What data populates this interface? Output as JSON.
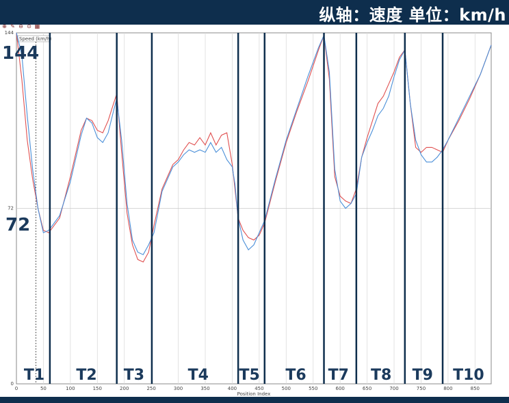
{
  "banner": {
    "text": "纵轴：速度  单位：km/h"
  },
  "toolbar": {
    "icons": [
      "zoom-in-icon",
      "zoom-tool-icon",
      "zoom-out-icon",
      "zoom-fit-icon",
      "grid-icon"
    ]
  },
  "colors": {
    "header_bg": "#0e2e4d",
    "series_red": "#e05050",
    "series_blue": "#4a8fd8",
    "turn_line": "#0e2e4d"
  },
  "chart_data": {
    "type": "line",
    "title": "",
    "xlabel": "Position Index",
    "ylabel": "Speed (km/h)",
    "xlim": [
      0,
      880
    ],
    "ylim": [
      0,
      144
    ],
    "x_ticks": [
      "0",
      "50",
      "100",
      "150",
      "200",
      "250",
      "300",
      "350",
      "400",
      "450",
      "500",
      "550",
      "600",
      "650",
      "700",
      "750",
      "800",
      "850"
    ],
    "y_ticks": [
      "0",
      "72",
      "144"
    ],
    "annotations": {
      "y_top": "144",
      "y_mid": "72"
    },
    "turn_boundaries": [
      62,
      186,
      251,
      411,
      460,
      570,
      630,
      720,
      790
    ],
    "turn_labels": [
      {
        "label": "T1",
        "x": 33
      },
      {
        "label": "T2",
        "x": 130
      },
      {
        "label": "T3",
        "x": 218
      },
      {
        "label": "T4",
        "x": 337
      },
      {
        "label": "T5",
        "x": 432
      },
      {
        "label": "T6",
        "x": 518
      },
      {
        "label": "T7",
        "x": 597
      },
      {
        "label": "T8",
        "x": 676
      },
      {
        "label": "T9",
        "x": 753
      },
      {
        "label": "T10",
        "x": 838
      }
    ],
    "series": [
      {
        "color": "#e05050",
        "x": [
          0,
          10,
          20,
          30,
          40,
          50,
          60,
          70,
          80,
          100,
          120,
          130,
          140,
          150,
          160,
          170,
          180,
          186,
          195,
          205,
          215,
          225,
          235,
          245,
          255,
          270,
          290,
          300,
          310,
          320,
          330,
          340,
          350,
          360,
          370,
          380,
          390,
          400,
          405,
          411,
          420,
          430,
          440,
          450,
          460,
          480,
          500,
          520,
          540,
          560,
          570,
          580,
          590,
          600,
          610,
          620,
          630,
          640,
          650,
          660,
          670,
          680,
          690,
          700,
          710,
          720,
          730,
          740,
          750,
          760,
          770,
          780,
          790,
          800,
          820,
          840,
          860,
          880
        ],
        "y": [
          144,
          125,
          100,
          84,
          72,
          63,
          62,
          65,
          68,
          85,
          104,
          109,
          108,
          104,
          103,
          108,
          115,
          119,
          95,
          70,
          57,
          51,
          50,
          54,
          65,
          80,
          90,
          92,
          96,
          99,
          98,
          101,
          98,
          103,
          98,
          102,
          103,
          90,
          80,
          68,
          63,
          60,
          59,
          61,
          66,
          83,
          99,
          112,
          124,
          137,
          143,
          125,
          85,
          77,
          75,
          74,
          80,
          93,
          101,
          108,
          115,
          118,
          123,
          128,
          134,
          137,
          115,
          97,
          95,
          97,
          97,
          96,
          95,
          100,
          108,
          117,
          127,
          139
        ]
      },
      {
        "color": "#4a8fd8",
        "x": [
          0,
          10,
          20,
          30,
          40,
          50,
          60,
          70,
          80,
          100,
          120,
          130,
          140,
          150,
          160,
          170,
          180,
          186,
          195,
          205,
          215,
          225,
          235,
          245,
          255,
          270,
          290,
          300,
          310,
          320,
          330,
          340,
          350,
          360,
          370,
          380,
          390,
          400,
          405,
          411,
          420,
          430,
          440,
          450,
          460,
          480,
          500,
          520,
          540,
          560,
          570,
          580,
          590,
          600,
          610,
          620,
          630,
          640,
          650,
          660,
          670,
          680,
          690,
          700,
          710,
          720,
          730,
          740,
          750,
          760,
          770,
          780,
          790,
          800,
          820,
          840,
          860,
          880
        ],
        "y": [
          144,
          135,
          110,
          88,
          72,
          62,
          63,
          66,
          69,
          83,
          102,
          109,
          107,
          101,
          99,
          103,
          112,
          117,
          100,
          74,
          59,
          54,
          53,
          57,
          62,
          79,
          89,
          91,
          94,
          96,
          95,
          96,
          95,
          99,
          95,
          97,
          92,
          89,
          82,
          68,
          59,
          55,
          57,
          62,
          67,
          84,
          100,
          113,
          126,
          138,
          143,
          128,
          88,
          75,
          72,
          74,
          78,
          93,
          99,
          104,
          110,
          113,
          118,
          126,
          133,
          137,
          115,
          100,
          94,
          91,
          91,
          93,
          96,
          100,
          109,
          118,
          127,
          139
        ]
      }
    ]
  }
}
